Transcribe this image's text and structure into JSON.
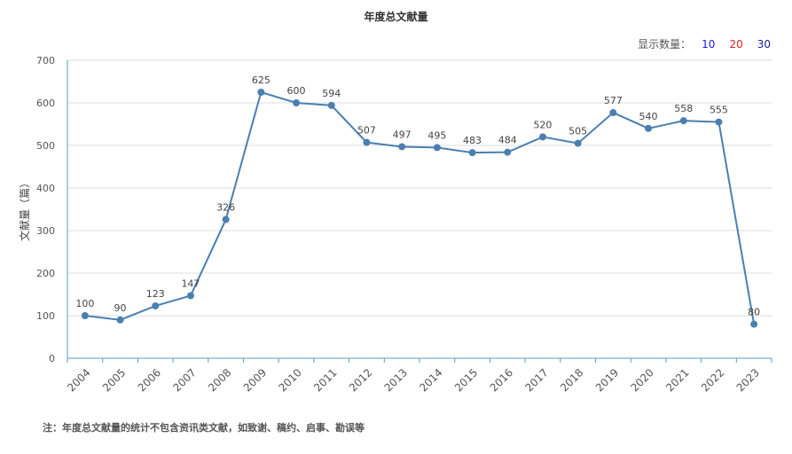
{
  "header": {
    "title": "年度总文献量"
  },
  "display_count": {
    "label": "显示数量：",
    "options": [
      {
        "label": "10",
        "color": "#1a1aff"
      },
      {
        "label": "20",
        "color": "#e02020"
      },
      {
        "label": "30",
        "color": "#1a1a9a"
      }
    ]
  },
  "footer": {
    "note": "注：年度总文献量的统计不包含资讯类文献，如致谢、稿约、启事、勘误等"
  },
  "chart_data": {
    "type": "line",
    "title": "年度总文献量",
    "xlabel": "",
    "ylabel": "文献量（篇）",
    "x": [
      "2004",
      "2005",
      "2006",
      "2007",
      "2008",
      "2009",
      "2010",
      "2011",
      "2012",
      "2013",
      "2014",
      "2015",
      "2016",
      "2017",
      "2018",
      "2019",
      "2020",
      "2021",
      "2022",
      "2023"
    ],
    "series": [
      {
        "values": [
          100,
          90,
          123,
          147,
          326,
          625,
          600,
          594,
          507,
          497,
          495,
          483,
          484,
          520,
          505,
          577,
          540,
          558,
          555,
          80
        ]
      }
    ],
    "yticks": [
      "0",
      "100",
      "200",
      "300",
      "400",
      "500",
      "600",
      "700"
    ],
    "ylim": [
      0,
      700
    ],
    "grid": true,
    "line_color": "#4a7fb0",
    "axis_color": "#5a9bc7"
  }
}
